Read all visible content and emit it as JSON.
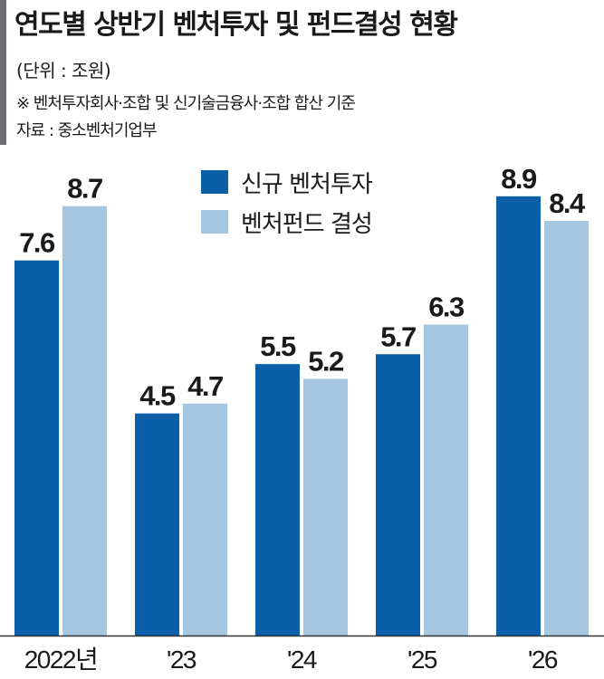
{
  "header": {
    "title": "연도별 상반기 벤처투자 및 펀드결성 현황",
    "unit": "(단위 : 조원)",
    "note": "※ 벤처투자회사·조합 및 신기술금융사·조합 합산 기준",
    "source": "자료 : 중소벤처기업부"
  },
  "colors": {
    "series_new": "#0b5ea8",
    "series_fund": "#a4c6e1",
    "accent": "#6d6e71",
    "text": "#1a1a1a"
  },
  "chart_data": {
    "type": "bar",
    "categories": [
      "2022년",
      "'23",
      "'24",
      "'25",
      "'26"
    ],
    "series": [
      {
        "name": "신규 벤처투자",
        "values": [
          7.6,
          4.5,
          5.5,
          5.7,
          8.9
        ]
      },
      {
        "name": "벤처펀드 결성",
        "values": [
          8.7,
          4.7,
          5.2,
          6.3,
          8.4
        ]
      }
    ],
    "value_labels": [
      [
        "7.6",
        "4.5",
        "5.5",
        "5.7",
        "8.9"
      ],
      [
        "8.7",
        "4.7",
        "5.2",
        "6.3",
        "8.4"
      ]
    ],
    "title": "연도별 상반기 벤처투자 및 펀드결성 현황",
    "xlabel": "",
    "ylabel": "",
    "ylim": [
      0,
      9.3
    ],
    "grid": false,
    "legend": "top-center"
  }
}
